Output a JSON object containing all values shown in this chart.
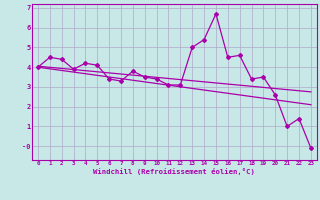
{
  "xlabel": "Windchill (Refroidissement éolien,°C)",
  "background_color": "#c8e8e8",
  "line_color": "#aa00aa",
  "grid_color": "#b0a8c8",
  "xlim": [
    -0.5,
    23.5
  ],
  "ylim": [
    -0.7,
    7.2
  ],
  "yticks": [
    0,
    1,
    2,
    3,
    4,
    5,
    6,
    7
  ],
  "ytick_labels": [
    "-0",
    "1",
    "2",
    "3",
    "4",
    "5",
    "6",
    "7"
  ],
  "xticks": [
    0,
    1,
    2,
    3,
    4,
    5,
    6,
    7,
    8,
    9,
    10,
    11,
    12,
    13,
    14,
    15,
    16,
    17,
    18,
    19,
    20,
    21,
    22,
    23
  ],
  "series1_x": [
    0,
    1,
    2,
    3,
    4,
    5,
    6,
    7,
    8,
    9,
    10,
    11,
    12,
    13,
    14,
    15,
    16,
    17,
    18,
    19,
    20,
    21,
    22,
    23
  ],
  "series1_y": [
    4.0,
    4.5,
    4.4,
    3.9,
    4.2,
    4.1,
    3.4,
    3.3,
    3.8,
    3.5,
    3.4,
    3.1,
    3.1,
    5.0,
    5.4,
    6.7,
    4.5,
    4.6,
    3.4,
    3.5,
    2.6,
    1.0,
    1.4,
    -0.1
  ],
  "series2_x": [
    0,
    23
  ],
  "series2_y": [
    4.05,
    2.75
  ],
  "series3_x": [
    0,
    23
  ],
  "series3_y": [
    4.0,
    2.1
  ]
}
